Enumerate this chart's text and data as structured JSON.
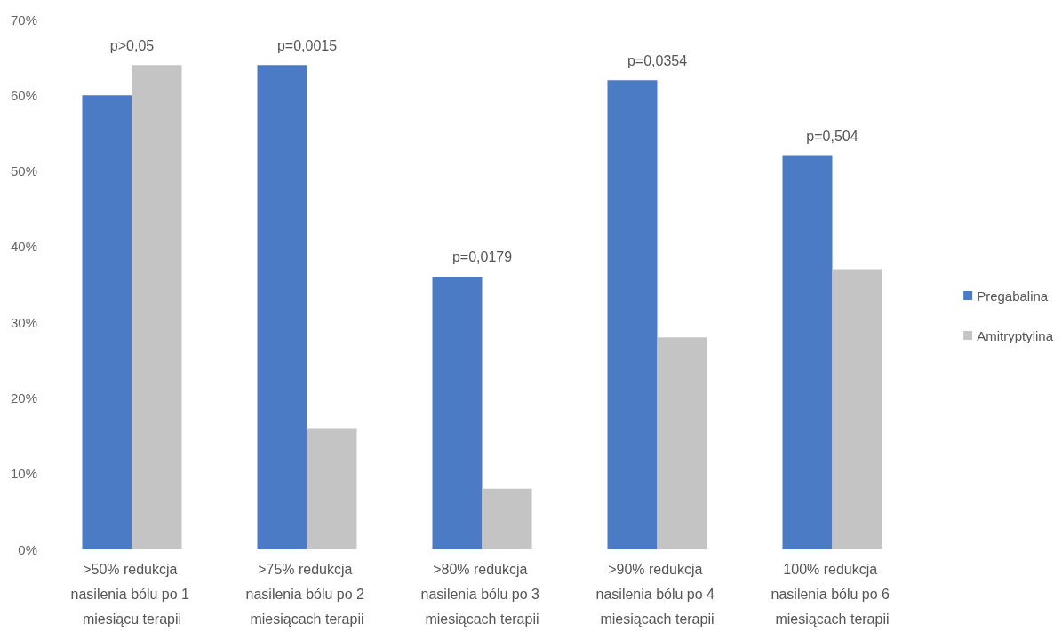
{
  "chart_data": {
    "type": "bar",
    "categories": [
      ">50% redukcja nasilenia bólu po 1 miesiącu terapii",
      ">75% redukcja nasilenia bólu po 2 miesiącach terapii",
      ">80% redukcja nasilenia bólu po 3 miesiącach terapii",
      ">90% redukcja nasilenia bólu po 4 miesiącach terapii",
      "100% redukcja nasilenia bólu po 6 miesiącach terapii"
    ],
    "series": [
      {
        "name": "Pregabalina",
        "color": "#4a7bc4",
        "values": [
          60,
          64,
          36,
          62,
          52
        ]
      },
      {
        "name": "Amitryptylina",
        "color": "#c4c4c4",
        "values": [
          64,
          16,
          8,
          28,
          37
        ]
      }
    ],
    "ylim": [
      0,
      70
    ],
    "yticks": [
      {
        "value": 0,
        "label": "0%"
      },
      {
        "value": 10,
        "label": "10%"
      },
      {
        "value": 20,
        "label": "20%"
      },
      {
        "value": 30,
        "label": "30%"
      },
      {
        "value": 40,
        "label": "40%"
      },
      {
        "value": 50,
        "label": "50%"
      },
      {
        "value": 60,
        "label": "60%"
      },
      {
        "value": 70,
        "label": "70%"
      }
    ],
    "annotations": [
      "p>0,05",
      "p=0,0015",
      "p=0,0179",
      "p=0,0354",
      "p=0,504"
    ],
    "grid": false,
    "legend": "right"
  }
}
